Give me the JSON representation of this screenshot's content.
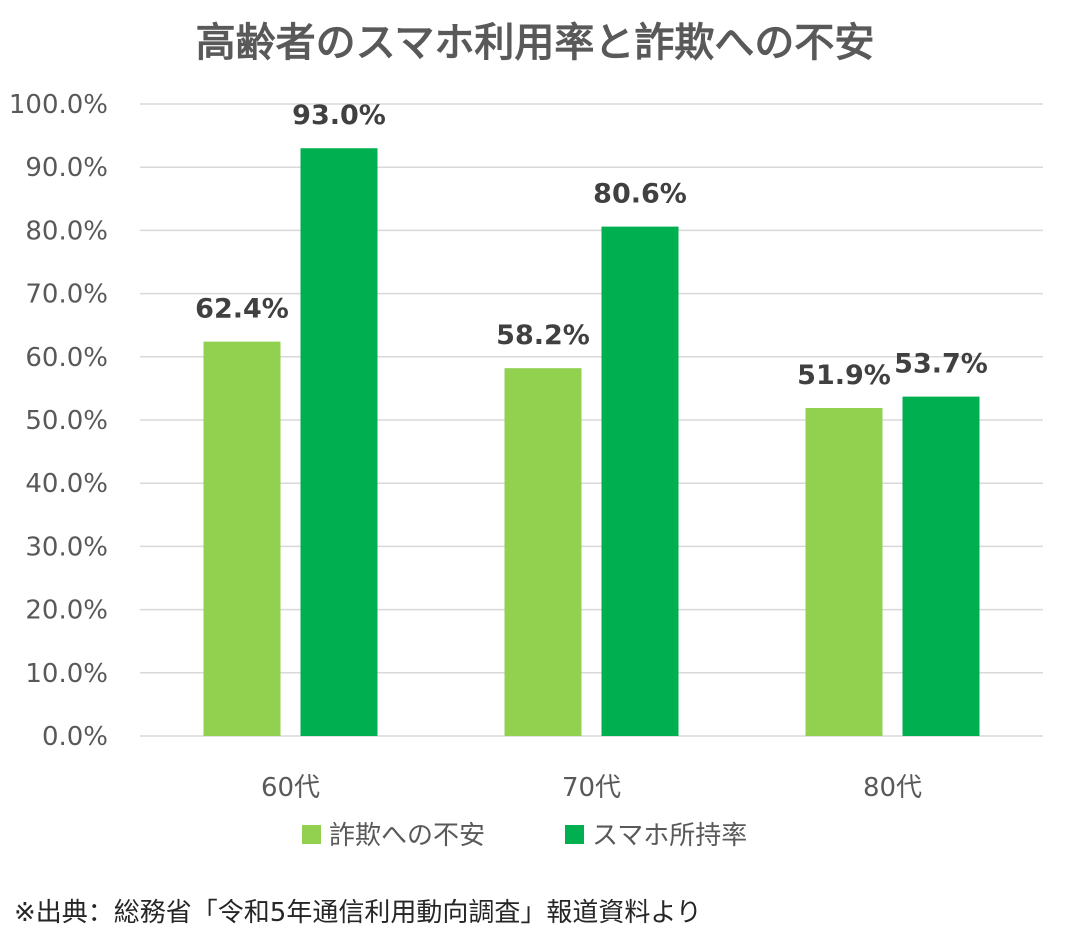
{
  "chart_data": {
    "type": "bar",
    "title": "高齢者のスマホ利用率と詐欺への不安",
    "categories": [
      "60代",
      "70代",
      "80代"
    ],
    "series": [
      {
        "name": "詐欺への不安",
        "values": [
          62.4,
          58.2,
          51.9
        ],
        "color": "#92d050"
      },
      {
        "name": "スマホ所持率",
        "values": [
          93.0,
          80.6,
          53.7
        ],
        "color": "#00b050"
      }
    ],
    "data_labels": [
      [
        "62.4%",
        "58.2%",
        "51.9%"
      ],
      [
        "93.0%",
        "80.6%",
        "53.7%"
      ]
    ],
    "y_ticks": [
      "0.0%",
      "10.0%",
      "20.0%",
      "30.0%",
      "40.0%",
      "50.0%",
      "60.0%",
      "70.0%",
      "80.0%",
      "90.0%",
      "100.0%"
    ],
    "ylim": [
      0,
      100
    ],
    "xlabel": "",
    "ylabel": "",
    "grid": true,
    "legend": "bottom",
    "gridline_color": "#d9d9d9"
  },
  "source_note": "※出典：総務省「令和5年通信利用動向調査」報道資料より"
}
